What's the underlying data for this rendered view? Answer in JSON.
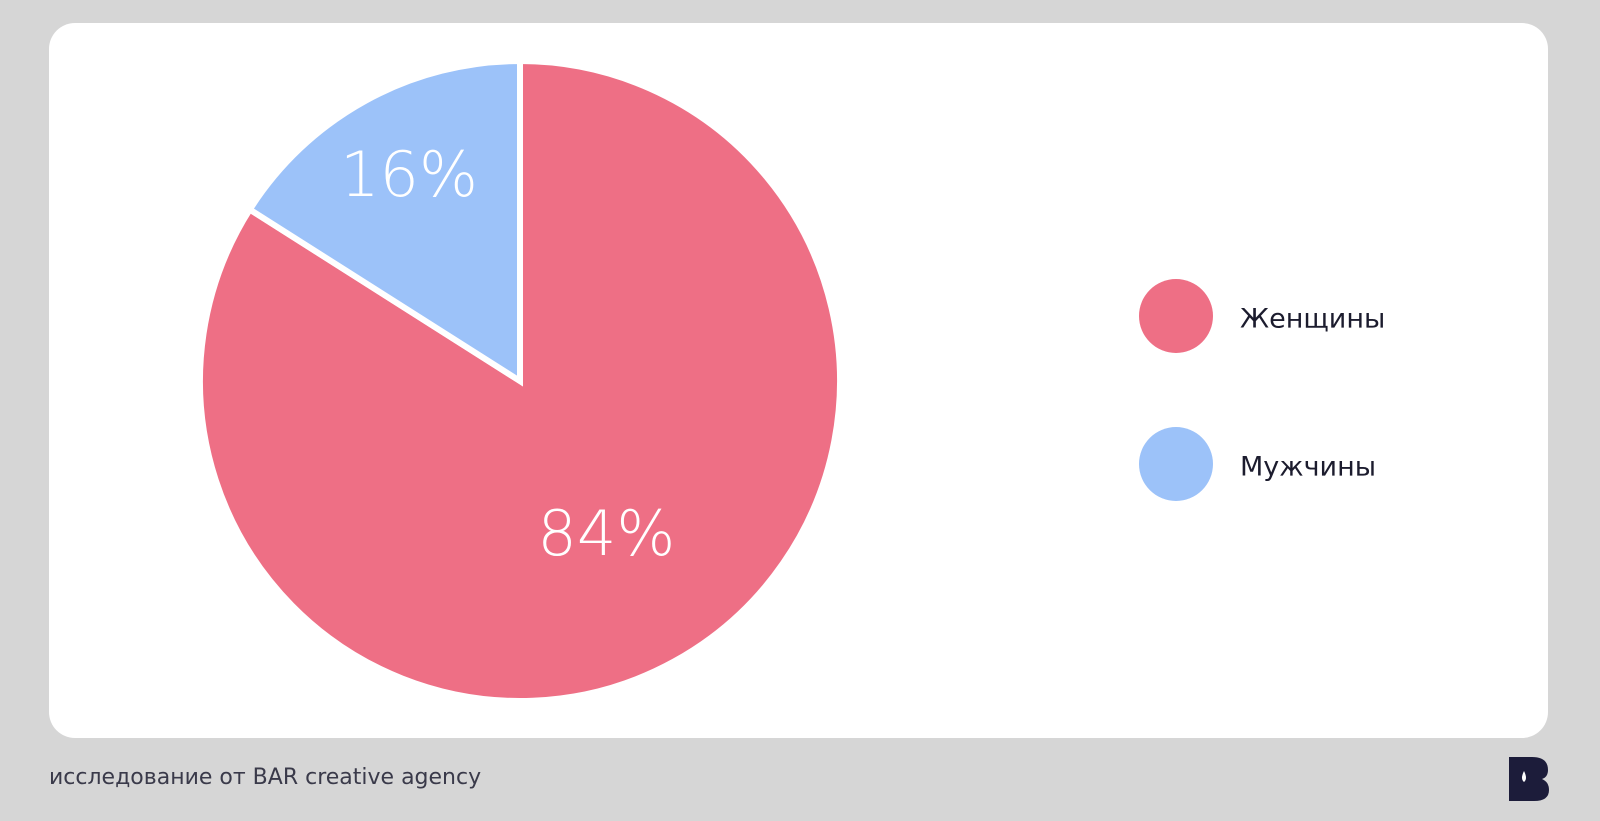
{
  "chart_data": {
    "type": "pie",
    "categories": [
      "Женщины",
      "Мужчины"
    ],
    "values": [
      84,
      16
    ],
    "value_labels": [
      "84%",
      "16%"
    ],
    "colors": [
      "#ee6f85",
      "#9cc2f9"
    ],
    "legend": "right",
    "source": "исследование от BAR creative agency"
  }
}
